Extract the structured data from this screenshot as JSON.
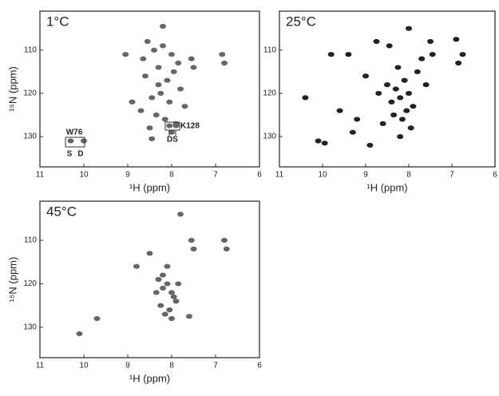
{
  "chart_data": [
    {
      "type": "scatter",
      "title": "1°C",
      "x_label": "¹H (ppm)",
      "y_label": "¹⁵N (ppm)",
      "color": "#666666",
      "xlim": [
        11,
        6
      ],
      "ylim": [
        137,
        101
      ],
      "xticks": [
        11,
        10,
        9,
        8,
        7,
        6
      ],
      "yticks": [
        130,
        120,
        110
      ],
      "annotations": [
        "W76",
        "S",
        "D",
        "K128",
        "DS"
      ],
      "x": [
        8.55,
        8.4,
        8.2,
        8.0,
        7.85,
        8.6,
        8.3,
        8.1,
        7.95,
        8.45,
        8.25,
        8.05,
        7.8,
        8.7,
        8.35,
        8.15,
        7.9,
        8.5,
        8.0,
        7.55,
        7.5,
        6.85,
        6.8,
        10.3,
        10.0,
        8.05,
        7.9,
        8.2,
        9.05,
        8.9,
        8.65,
        8.3,
        7.7,
        8.45
      ],
      "y": [
        108,
        110,
        109,
        111,
        113,
        116,
        118,
        117,
        115,
        121,
        120,
        122,
        119,
        124,
        125,
        126,
        127,
        128,
        129,
        112,
        114,
        111,
        113,
        131,
        131,
        127.5,
        127.5,
        104.5,
        111,
        122,
        112,
        114,
        123,
        130.5
      ]
    },
    {
      "type": "scatter",
      "title": "25°C",
      "x_label": "¹H (ppm)",
      "y_label": null,
      "color": "#222222",
      "xlim": [
        11,
        6
      ],
      "ylim": [
        137,
        101
      ],
      "xticks": [
        11,
        10,
        9,
        8,
        7,
        6
      ],
      "yticks": [
        130,
        120,
        110
      ],
      "x": [
        10.4,
        10.1,
        9.95,
        9.8,
        9.4,
        9.6,
        9.3,
        9.0,
        8.9,
        8.7,
        8.5,
        8.4,
        8.3,
        8.2,
        8.1,
        8.0,
        7.9,
        7.8,
        7.7,
        7.6,
        8.6,
        8.35,
        8.15,
        7.95,
        8.25,
        8.05,
        7.5,
        7.45,
        6.9,
        6.85,
        6.75,
        8.75,
        9.2,
        8.0,
        8.2,
        8.45
      ],
      "y": [
        121,
        131,
        131.5,
        111,
        111,
        124,
        129,
        116,
        132,
        120,
        118,
        122,
        119,
        121,
        117,
        120,
        123,
        115,
        112,
        118,
        127,
        125,
        126,
        128,
        114,
        124,
        108,
        111,
        107.5,
        113,
        111,
        108,
        126,
        105,
        130,
        109
      ]
    },
    {
      "type": "scatter",
      "title": "45°C",
      "x_label": "¹H (ppm)",
      "y_label": "¹⁵N (ppm)",
      "color": "#666666",
      "xlim": [
        11,
        6
      ],
      "ylim": [
        137,
        101
      ],
      "xticks": [
        11,
        10,
        9,
        8,
        7,
        6
      ],
      "yticks": [
        130,
        120,
        110
      ],
      "x": [
        8.3,
        8.2,
        8.1,
        8.0,
        7.9,
        8.25,
        8.05,
        7.95,
        8.15,
        8.35,
        7.85,
        8.0,
        8.2,
        8.1,
        7.55,
        7.5,
        6.8,
        6.75,
        10.1,
        9.7,
        8.8,
        7.6,
        8.5,
        7.8
      ],
      "y": [
        119,
        121,
        120,
        122,
        124,
        125,
        126,
        123,
        127,
        122,
        120,
        128,
        118,
        116,
        110,
        112,
        110,
        112,
        131.5,
        128,
        116,
        127.5,
        113,
        104
      ]
    }
  ]
}
